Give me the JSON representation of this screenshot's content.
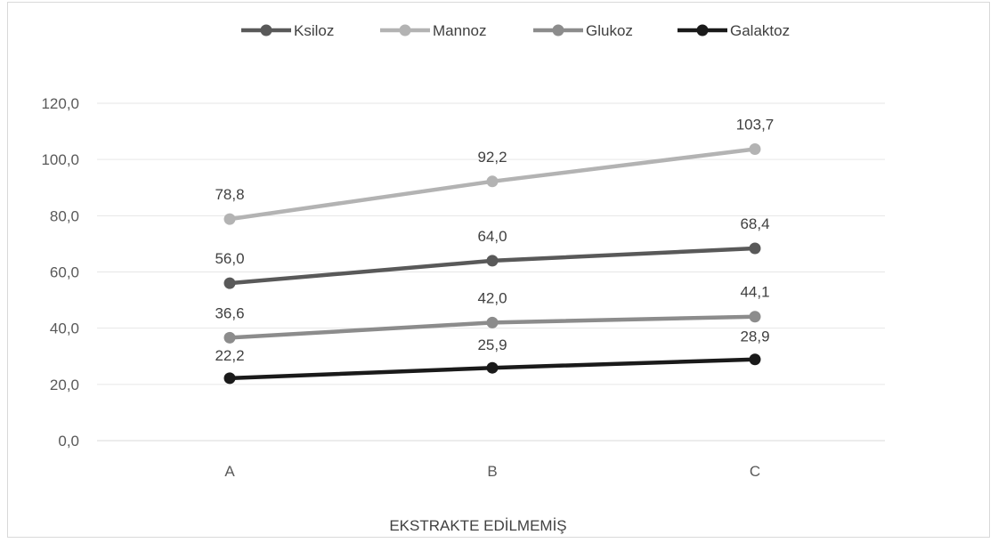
{
  "chart_data": {
    "type": "line",
    "title": "",
    "xlabel": "EKSTRAKTE EDİLMEMİŞ",
    "ylabel": "",
    "categories": [
      "A",
      "B",
      "C"
    ],
    "ylim": [
      0,
      120
    ],
    "yticks": [
      "0,0",
      "20,0",
      "40,0",
      "60,0",
      "80,0",
      "100,0",
      "120,0"
    ],
    "grid": true,
    "legend_position": "top",
    "series": [
      {
        "name": "Ksiloz",
        "values": [
          56.0,
          64.0,
          68.4
        ],
        "labels": [
          "56,0",
          "64,0",
          "68,4"
        ],
        "color": "#595959"
      },
      {
        "name": "Mannoz",
        "values": [
          78.8,
          92.2,
          103.7
        ],
        "labels": [
          "78,8",
          "92,2",
          "103,7"
        ],
        "color": "#b3b3b3"
      },
      {
        "name": "Glukoz",
        "values": [
          36.6,
          42.0,
          44.1
        ],
        "labels": [
          "36,6",
          "42,0",
          "44,1"
        ],
        "color": "#8c8c8c"
      },
      {
        "name": "Galaktoz",
        "values": [
          22.2,
          25.9,
          28.9
        ],
        "labels": [
          "22,2",
          "25,9",
          "28,9"
        ],
        "color": "#1a1a1a"
      }
    ]
  }
}
